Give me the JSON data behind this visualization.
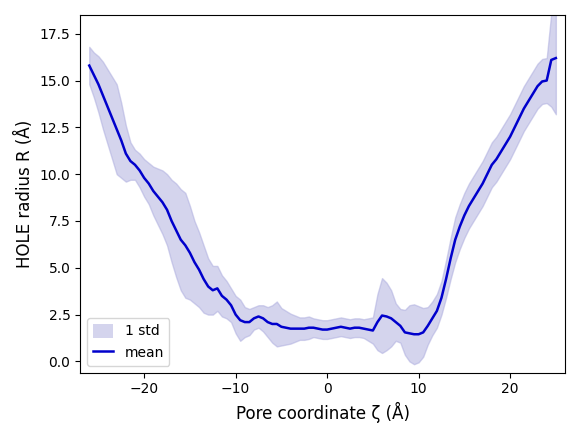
{
  "xlabel": "Pore coordinate ζ (Å)",
  "ylabel": "HOLE radius R (Å)",
  "line_color": "#0000cc",
  "fill_color": "#aaaadd",
  "fill_alpha": 0.5,
  "legend_labels": [
    "1 std",
    "mean"
  ],
  "xlim": [
    -27,
    26
  ],
  "ylim": [
    -0.6,
    18.5
  ],
  "x_ticks": [
    -20,
    -10,
    0,
    10,
    20
  ],
  "y_ticks": [
    0.0,
    2.5,
    5.0,
    7.5,
    10.0,
    12.5,
    15.0,
    17.5
  ],
  "zeta": [
    -26.0,
    -25.5,
    -25.0,
    -24.5,
    -24.0,
    -23.5,
    -23.0,
    -22.5,
    -22.0,
    -21.5,
    -21.0,
    -20.5,
    -20.0,
    -19.5,
    -19.0,
    -18.5,
    -18.0,
    -17.5,
    -17.0,
    -16.5,
    -16.0,
    -15.5,
    -15.0,
    -14.5,
    -14.0,
    -13.5,
    -13.0,
    -12.5,
    -12.0,
    -11.5,
    -11.0,
    -10.5,
    -10.0,
    -9.5,
    -9.0,
    -8.5,
    -8.0,
    -7.5,
    -7.0,
    -6.5,
    -6.0,
    -5.5,
    -5.0,
    -4.5,
    -4.0,
    -3.5,
    -3.0,
    -2.5,
    -2.0,
    -1.5,
    -1.0,
    -0.5,
    0.0,
    0.5,
    1.0,
    1.5,
    2.0,
    2.5,
    3.0,
    3.5,
    4.0,
    4.5,
    5.0,
    5.5,
    6.0,
    6.5,
    7.0,
    7.5,
    8.0,
    8.5,
    9.0,
    9.5,
    10.0,
    10.5,
    11.0,
    11.5,
    12.0,
    12.5,
    13.0,
    13.5,
    14.0,
    14.5,
    15.0,
    15.5,
    16.0,
    16.5,
    17.0,
    17.5,
    18.0,
    18.5,
    19.0,
    19.5,
    20.0,
    20.5,
    21.0,
    21.5,
    22.0,
    22.5,
    23.0,
    23.5,
    24.0,
    24.5,
    25.0
  ],
  "mean": [
    15.8,
    15.3,
    14.8,
    14.2,
    13.6,
    13.0,
    12.4,
    11.8,
    11.1,
    10.7,
    10.5,
    10.2,
    9.8,
    9.5,
    9.1,
    8.8,
    8.5,
    8.1,
    7.5,
    7.0,
    6.5,
    6.2,
    5.8,
    5.3,
    4.9,
    4.4,
    4.0,
    3.8,
    3.9,
    3.5,
    3.3,
    3.0,
    2.5,
    2.2,
    2.1,
    2.1,
    2.3,
    2.4,
    2.3,
    2.1,
    2.0,
    2.0,
    1.85,
    1.8,
    1.75,
    1.75,
    1.75,
    1.75,
    1.8,
    1.8,
    1.75,
    1.7,
    1.7,
    1.75,
    1.8,
    1.85,
    1.8,
    1.75,
    1.8,
    1.8,
    1.75,
    1.7,
    1.65,
    2.1,
    2.45,
    2.4,
    2.3,
    2.1,
    1.9,
    1.55,
    1.5,
    1.45,
    1.45,
    1.55,
    1.9,
    2.3,
    2.7,
    3.4,
    4.4,
    5.5,
    6.5,
    7.2,
    7.8,
    8.3,
    8.7,
    9.1,
    9.5,
    10.0,
    10.5,
    10.8,
    11.2,
    11.6,
    12.0,
    12.5,
    13.0,
    13.5,
    13.9,
    14.3,
    14.7,
    14.95,
    15.0,
    16.1,
    16.2
  ],
  "std": [
    1.0,
    1.2,
    1.5,
    1.8,
    2.0,
    2.2,
    2.4,
    2.0,
    1.5,
    1.0,
    0.8,
    0.9,
    1.0,
    1.1,
    1.3,
    1.5,
    1.7,
    1.9,
    2.2,
    2.5,
    2.7,
    2.8,
    2.5,
    2.2,
    2.0,
    1.8,
    1.5,
    1.3,
    1.2,
    1.1,
    1.0,
    0.9,
    1.0,
    1.1,
    0.8,
    0.7,
    0.6,
    0.6,
    0.7,
    0.8,
    1.0,
    1.2,
    1.0,
    0.9,
    0.8,
    0.7,
    0.6,
    0.6,
    0.6,
    0.5,
    0.5,
    0.5,
    0.5,
    0.5,
    0.5,
    0.5,
    0.5,
    0.5,
    0.5,
    0.5,
    0.5,
    0.6,
    0.7,
    1.5,
    2.0,
    1.8,
    1.5,
    1.0,
    0.9,
    1.2,
    1.5,
    1.6,
    1.5,
    1.3,
    1.0,
    0.9,
    0.9,
    0.9,
    1.0,
    1.1,
    1.2,
    1.2,
    1.2,
    1.2,
    1.2,
    1.2,
    1.2,
    1.2,
    1.2,
    1.2,
    1.2,
    1.2,
    1.2,
    1.2,
    1.2,
    1.2,
    1.2,
    1.2,
    1.2,
    1.2,
    1.2,
    2.5,
    3.0
  ]
}
